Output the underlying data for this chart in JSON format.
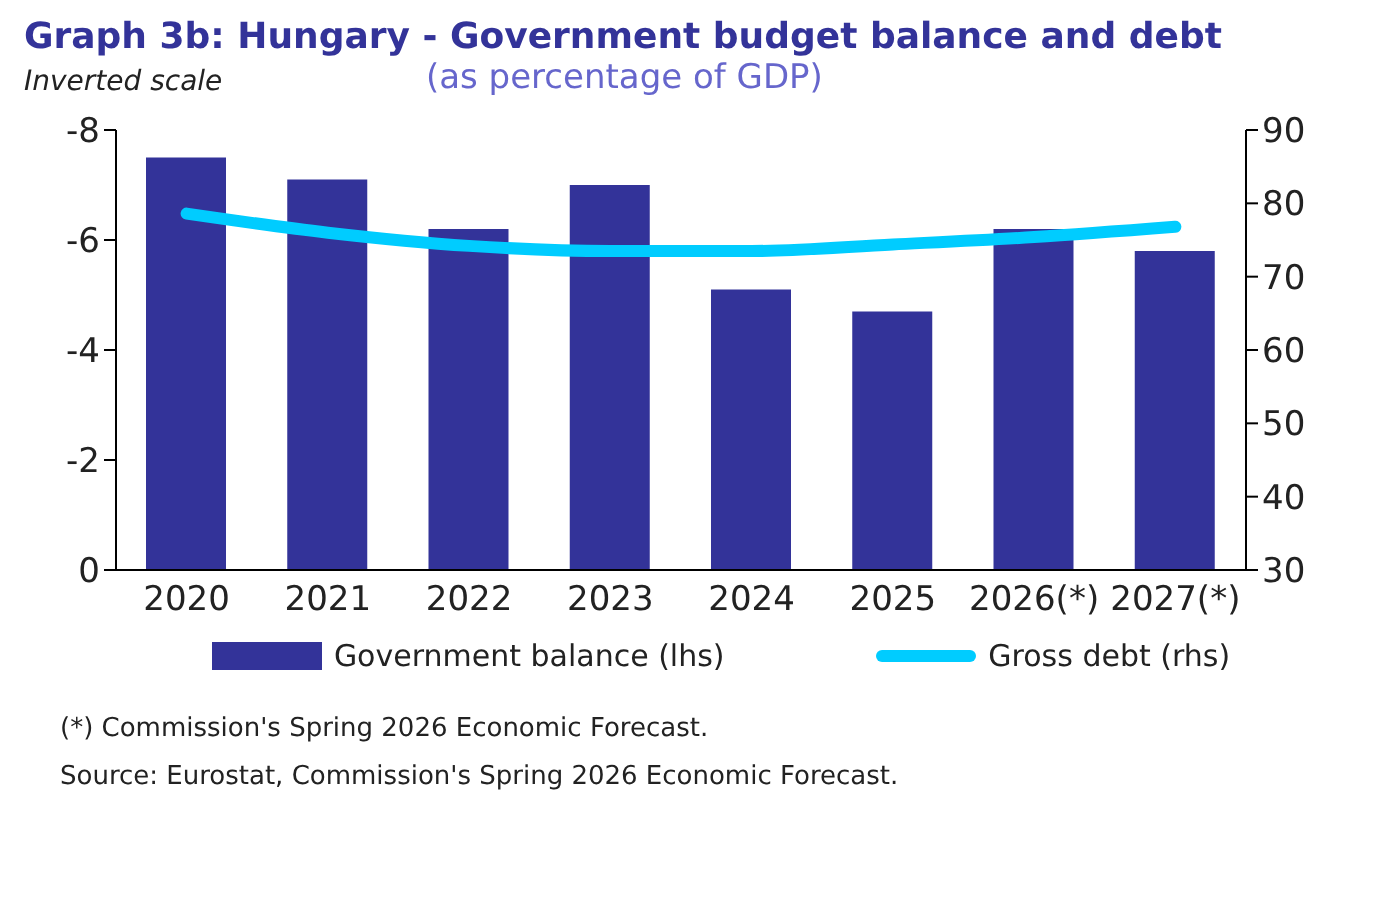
{
  "chart_data": {
    "type": "bar",
    "title": "Graph 3b: Hungary - Government budget balance and debt",
    "subtitle": "(as percentage of GDP)",
    "annotations": [
      "Inverted scale",
      "(*) Commission's Spring 2026 Economic Forecast.",
      "Source: Eurostat, Commission's Spring 2026 Economic Forecast."
    ],
    "categories": [
      "2020",
      "2021",
      "2022",
      "2023",
      "2024",
      "2025",
      "2026(*)",
      "2027(*)"
    ],
    "series": [
      {
        "name": "Government balance (lhs)",
        "color": "#333399",
        "values": [
          -7.5,
          -7.1,
          -6.2,
          -7.0,
          -5.1,
          -4.7,
          -6.2,
          -5.8
        ]
      },
      {
        "name": "Gross debt (rhs)",
        "type": "line",
        "axis": "y2",
        "color": "#00ccff",
        "values": [
          78.6,
          76.0,
          74.2,
          73.5,
          73.5,
          74.4,
          75.4,
          76.8
        ]
      }
    ],
    "ylim": [
      0,
      -8
    ],
    "yticks": [
      0,
      -2,
      -4,
      -6,
      -8
    ],
    "y2lim": [
      30,
      90
    ],
    "y2ticks": [
      30,
      40,
      50,
      60,
      70,
      80,
      90
    ],
    "grid": false,
    "legend": "bottom",
    "marker": "none"
  }
}
